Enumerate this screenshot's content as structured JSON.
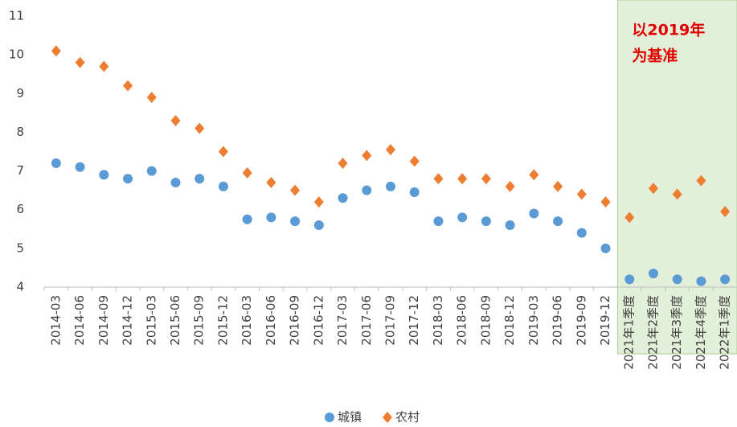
{
  "chart_data": {
    "type": "scatter",
    "categories": [
      "2014-03",
      "2014-06",
      "2014-09",
      "2014-12",
      "2015-03",
      "2015-06",
      "2015-09",
      "2015-12",
      "2016-03",
      "2016-06",
      "2016-09",
      "2016-12",
      "2017-03",
      "2017-06",
      "2017-09",
      "2017-12",
      "2018-03",
      "2018-06",
      "2018-09",
      "2018-12",
      "2019-03",
      "2019-06",
      "2019-09",
      "2019-12",
      "2021年1季度",
      "2021年2季度",
      "2021年3季度",
      "2021年4季度",
      "2022年1季度"
    ],
    "series": [
      {
        "name": "城镇",
        "color": "#5b9bd5",
        "marker": "circle",
        "values": [
          7.2,
          7.1,
          6.9,
          6.8,
          7.0,
          6.7,
          6.8,
          6.6,
          5.75,
          5.8,
          5.7,
          5.6,
          6.3,
          6.5,
          6.6,
          6.45,
          5.7,
          5.8,
          5.7,
          5.6,
          5.9,
          5.7,
          5.4,
          5.0,
          4.2,
          4.35,
          4.2,
          4.15,
          4.2
        ]
      },
      {
        "name": "农村",
        "color": "#ed7d31",
        "marker": "diamond",
        "values": [
          10.1,
          9.8,
          9.7,
          9.2,
          8.9,
          8.3,
          8.1,
          7.5,
          6.95,
          6.7,
          6.5,
          6.2,
          7.2,
          7.4,
          7.55,
          7.25,
          6.8,
          6.8,
          6.8,
          6.6,
          6.9,
          6.6,
          6.4,
          6.2,
          5.8,
          6.55,
          6.4,
          6.75,
          5.95
        ]
      }
    ],
    "ylim": [
      4,
      11
    ],
    "yticks": [
      4,
      5,
      6,
      7,
      8,
      9,
      10,
      11
    ],
    "highlight": {
      "from": "2021年1季度",
      "color": "#e2efd9",
      "annotation": [
        "以2019年",
        "为基准"
      ]
    },
    "legend": "bottom"
  }
}
